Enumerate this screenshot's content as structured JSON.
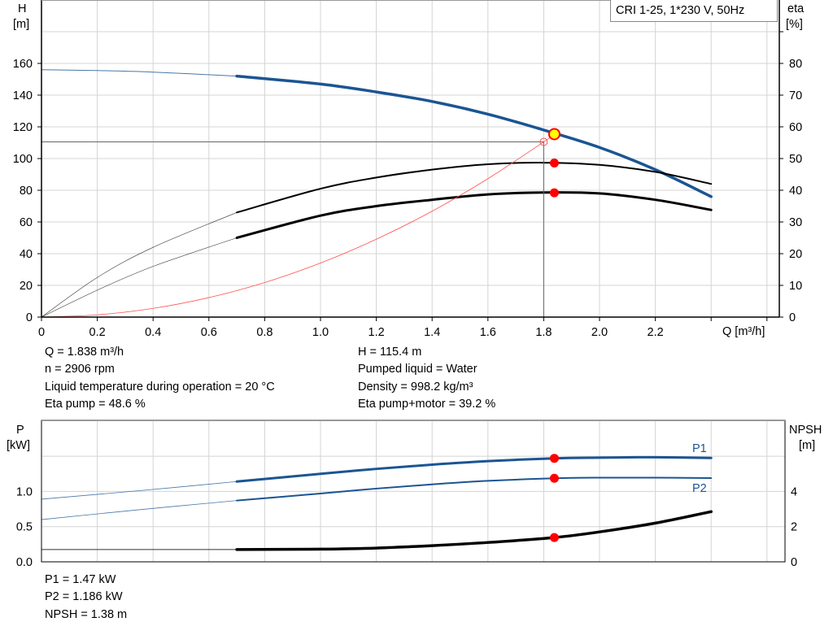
{
  "colors": {
    "head": "#1b5592",
    "eta": "#000000",
    "system": "#ff5050",
    "power": "#1b5592",
    "npsh": "#000000",
    "duty_point": "#ff0000",
    "duty_point_fill": "#ffff00",
    "grid": "#d4d4d4"
  },
  "chart_data": [
    {
      "type": "line",
      "title": "CRI 1-25, 1*230 V, 50Hz",
      "xlabel": "Q [m³/h]",
      "ylabel_left": {
        "name": "H",
        "unit": "[m]"
      },
      "ylabel_right": {
        "name": "eta",
        "unit": "[%]"
      },
      "xlim": [
        0,
        2.6
      ],
      "ylim_left": [
        0,
        200
      ],
      "ylim_right": [
        0,
        100
      ],
      "x_ticks": [
        "0",
        "0.2",
        "0.4",
        "0.6",
        "0.8",
        "1.0",
        "1.2",
        "1.4",
        "1.6",
        "1.8",
        "2.0",
        "2.2"
      ],
      "y_ticks_left": [
        "0",
        "20",
        "40",
        "60",
        "80",
        "100",
        "120",
        "140",
        "160"
      ],
      "y_ticks_right": [
        "0",
        "10",
        "20",
        "30",
        "40",
        "50",
        "60",
        "70",
        "80"
      ],
      "grid": true,
      "series": [
        {
          "key": "head",
          "axis": "left",
          "thick_from": 0.7,
          "x": [
            0,
            0.2,
            0.4,
            0.7,
            1.0,
            1.2,
            1.4,
            1.6,
            1.8,
            2.0,
            2.2,
            2.4
          ],
          "y": [
            156,
            155.5,
            154.5,
            152,
            147,
            142,
            136,
            128,
            118,
            107,
            93,
            76
          ]
        },
        {
          "key": "eta_pump",
          "axis": "right",
          "thick_from": 0.7,
          "x": [
            0,
            0.2,
            0.4,
            0.7,
            1.0,
            1.2,
            1.4,
            1.6,
            1.8,
            2.0,
            2.2,
            2.4
          ],
          "y": [
            0,
            12.5,
            22,
            33,
            40.5,
            44,
            46.5,
            48.2,
            48.7,
            48,
            45.8,
            42
          ]
        },
        {
          "key": "eta_pump_motor",
          "axis": "right",
          "thick_from": 0.7,
          "x": [
            0,
            0.2,
            0.4,
            0.7,
            1.0,
            1.2,
            1.4,
            1.6,
            1.8,
            2.0,
            2.2,
            2.4
          ],
          "y": [
            0,
            8.5,
            16,
            25,
            32,
            35,
            37,
            38.7,
            39.3,
            39,
            37,
            33.8
          ]
        },
        {
          "key": "system",
          "axis": "left",
          "thick_from": null,
          "x": [
            0,
            0.2,
            0.4,
            0.6,
            0.8,
            1.0,
            1.2,
            1.4,
            1.6,
            1.8,
            1.838
          ],
          "y": [
            0,
            1.4,
            5.5,
            12.3,
            21.8,
            34.1,
            49.1,
            66.8,
            87.3,
            110.5,
            115.4
          ]
        }
      ],
      "duty_points": [
        {
          "series": "head",
          "x": 1.838,
          "y": 115.4,
          "style": "yellow"
        },
        {
          "series": "eta_pump",
          "x": 1.838,
          "y": 48.6,
          "style": "red"
        },
        {
          "series": "eta_pump_motor",
          "x": 1.838,
          "y": 39.2,
          "style": "red"
        }
      ],
      "reference_point": {
        "x": 1.8,
        "y": 110.5
      }
    },
    {
      "type": "line",
      "ylabel_left": {
        "name": "P",
        "unit": "[kW]"
      },
      "ylabel_right": {
        "name": "NPSH",
        "unit": "[m]"
      },
      "xlim": [
        0,
        2.6
      ],
      "ylim_left": [
        0,
        1.75
      ],
      "ylim_right": [
        0,
        7
      ],
      "y_ticks_left": [
        "0.0",
        "0.5",
        "1.0"
      ],
      "y_ticks_right": [
        "0",
        "2",
        "4"
      ],
      "grid": true,
      "series": [
        {
          "key": "P1",
          "name": "P1",
          "axis": "left",
          "thick_from": 0.7,
          "x": [
            0,
            0.35,
            0.7,
            1.0,
            1.2,
            1.4,
            1.6,
            1.838,
            2.0,
            2.2,
            2.4
          ],
          "y": [
            0.89,
            1.01,
            1.14,
            1.25,
            1.32,
            1.38,
            1.43,
            1.47,
            1.48,
            1.485,
            1.475
          ]
        },
        {
          "key": "P2",
          "name": "P2",
          "axis": "left",
          "thick_from": 0.7,
          "x": [
            0,
            0.35,
            0.7,
            1.0,
            1.2,
            1.4,
            1.6,
            1.838,
            2.0,
            2.2,
            2.4
          ],
          "y": [
            0.6,
            0.74,
            0.87,
            0.97,
            1.04,
            1.1,
            1.15,
            1.186,
            1.195,
            1.195,
            1.19
          ]
        },
        {
          "key": "NPSH",
          "axis": "right",
          "thick_from": 0.7,
          "x": [
            0,
            0.35,
            0.7,
            1.0,
            1.2,
            1.4,
            1.6,
            1.838,
            2.0,
            2.2,
            2.4
          ],
          "y": [
            0.7,
            0.7,
            0.7,
            0.72,
            0.78,
            0.92,
            1.1,
            1.38,
            1.7,
            2.2,
            2.85
          ]
        }
      ],
      "duty_points": [
        {
          "series": "P1",
          "x": 1.838,
          "y": 1.47,
          "style": "red"
        },
        {
          "series": "P2",
          "x": 1.838,
          "y": 1.186,
          "style": "red"
        },
        {
          "series": "NPSH",
          "x": 1.838,
          "y": 1.38,
          "style": "red"
        }
      ]
    }
  ],
  "results": {
    "left": [
      "Q = 1.838 m³/h",
      "n = 2906 rpm",
      "Liquid temperature during operation = 20 °C",
      "Eta pump = 48.6 %"
    ],
    "right": [
      "H = 115.4 m",
      "Pumped liquid = Water",
      "Density = 998.2 kg/m³",
      "Eta pump+motor = 39.2 %"
    ],
    "bottom": [
      "P1 = 1.47 kW",
      "P2 = 1.186 kW",
      "NPSH = 1.38 m"
    ]
  }
}
